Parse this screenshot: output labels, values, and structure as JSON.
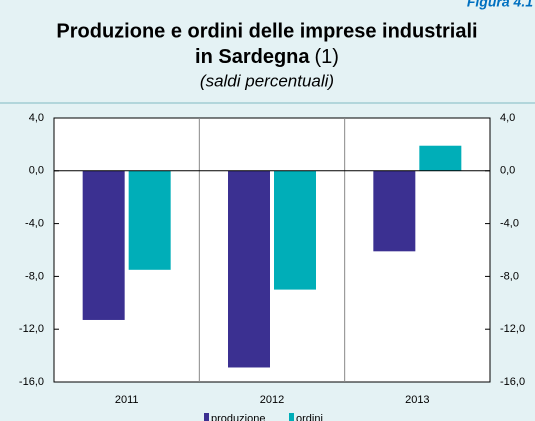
{
  "figure_label": "Figura 4.1",
  "chart_data": {
    "type": "bar",
    "title": "Produzione e ordini delle imprese industriali",
    "title_line2": "in Sardegna",
    "title_note": "(1)",
    "subtitle": "(saldi percentuali)",
    "categories": [
      "2011",
      "2012",
      "2013"
    ],
    "series": [
      {
        "name": "produzione",
        "color": "#3b3091",
        "values": [
          -11.3,
          -14.9,
          -6.1
        ]
      },
      {
        "name": "ordini",
        "color": "#00aeb8",
        "values": [
          -7.5,
          -9.0,
          1.9
        ]
      }
    ],
    "ylim": [
      -16,
      4
    ],
    "yticks": [
      {
        "value": -16,
        "label": "-16,0"
      },
      {
        "value": -12,
        "label": "-12,0"
      },
      {
        "value": -8,
        "label": "-8,0"
      },
      {
        "value": -4,
        "label": "-4,0"
      },
      {
        "value": 0,
        "label": "0,0"
      },
      {
        "value": 4,
        "label": "4,0"
      }
    ],
    "legend": "bottom"
  }
}
